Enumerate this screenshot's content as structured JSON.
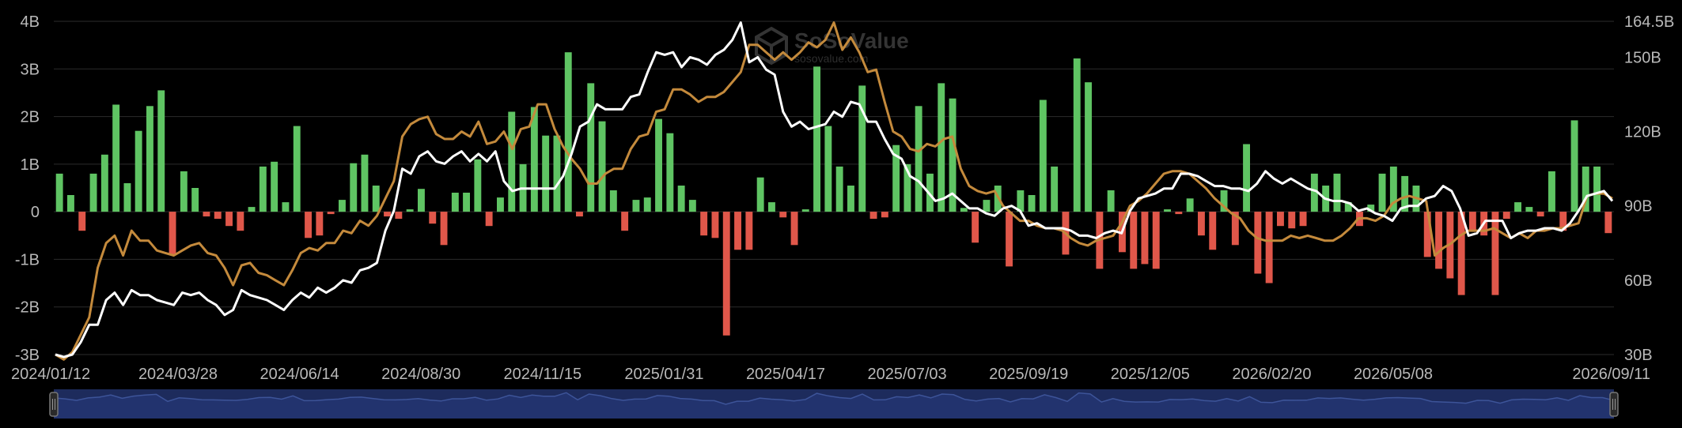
{
  "watermark": {
    "brand": "SoSoValue",
    "site": "sosovalue.com"
  },
  "colors": {
    "background": "#000000",
    "inflow_bar": "#5fc463",
    "outflow_bar": "#e0574a",
    "white_line": "#ffffff",
    "gold_line": "#c48a3c",
    "navigator_fill": "#1d2b5c",
    "navigator_line": "#3d5499"
  },
  "chart_data": {
    "type": "bar",
    "title": "",
    "grid": true,
    "left_axis": {
      "ticks": [
        "-3B",
        "-2B",
        "-1B",
        "0",
        "1B",
        "2B",
        "3B",
        "4B"
      ],
      "ylim": [
        -3,
        4
      ]
    },
    "right_axis": {
      "ticks": [
        "30B",
        "60B",
        "90B",
        "120B",
        "150B",
        "164.5B"
      ],
      "ylim": [
        30,
        164.5
      ]
    },
    "x_tick_labels": [
      "2024/01/12",
      "2024/03/28",
      "2024/06/14",
      "2024/08/30",
      "2024/11/15",
      "2025/01/31",
      "2025/04/17",
      "2025/07/03",
      "2025/09/19",
      "2025/12/05",
      "2026/02/20",
      "2026/05/08",
      "2026/09/11"
    ],
    "bar_values": [
      0.8,
      0.35,
      -0.4,
      0.8,
      1.2,
      2.25,
      0.6,
      1.7,
      2.22,
      2.55,
      -0.9,
      0.85,
      0.5,
      -0.1,
      -0.15,
      -0.3,
      -0.4,
      0.1,
      0.95,
      1.05,
      0.2,
      1.8,
      -0.55,
      -0.5,
      -0.05,
      0.25,
      1.02,
      1.2,
      0.55,
      -0.1,
      -0.15,
      0.05,
      0.48,
      -0.25,
      -0.7,
      0.4,
      0.4,
      1.1,
      -0.3,
      0.3,
      2.1,
      1.0,
      2.2,
      1.6,
      1.6,
      3.35,
      -0.1,
      2.7,
      1.9,
      0.45,
      -0.4,
      0.25,
      0.3,
      1.95,
      1.65,
      0.55,
      0.25,
      -0.5,
      -0.55,
      -2.6,
      -0.8,
      -0.8,
      0.72,
      0.2,
      -0.12,
      -0.7,
      0.05,
      3.05,
      1.8,
      0.95,
      0.55,
      2.65,
      -0.15,
      -0.12,
      1.4,
      1.0,
      2.22,
      0.8,
      2.7,
      2.38,
      0.08,
      -0.65,
      0.25,
      0.55,
      -1.15,
      0.45,
      0.35,
      2.35,
      0.95,
      -0.9,
      3.22,
      2.72,
      -1.2,
      0.45,
      -0.85,
      -1.2,
      -1.1,
      -1.2,
      0.05,
      -0.05,
      0.28,
      -0.5,
      -0.8,
      0.45,
      -0.7,
      1.42,
      -1.3,
      -1.5,
      -0.3,
      -0.35,
      -0.3,
      0.8,
      0.55,
      0.8,
      0.2,
      -0.3,
      0.15,
      0.8,
      0.95,
      0.75,
      0.55,
      -0.95,
      -1.2,
      -1.4,
      -1.75,
      -0.4,
      -0.5,
      -1.75,
      -0.15,
      0.2,
      0.1,
      -0.1,
      0.85,
      -0.4,
      1.92,
      0.95,
      0.95,
      -0.45
    ],
    "series": [
      {
        "axis": "right",
        "values": [
          30,
          29,
          30,
          35,
          42,
          42,
          52,
          55,
          50,
          56,
          54,
          54,
          52,
          51,
          50,
          55,
          54,
          55,
          52,
          50,
          46,
          48,
          56,
          54,
          53,
          52,
          50,
          48,
          52,
          55,
          53,
          57,
          55,
          57,
          60,
          59,
          64,
          65,
          67,
          80,
          88,
          105,
          103,
          110,
          112,
          108,
          107,
          110,
          112,
          108,
          111,
          108,
          112,
          100,
          96,
          97,
          97,
          97,
          97,
          97,
          102,
          111,
          122,
          124,
          131,
          129,
          129,
          129,
          134,
          135,
          144,
          152,
          151,
          152,
          146,
          150,
          149,
          147,
          151,
          153,
          157,
          164,
          148,
          150,
          145,
          143,
          128,
          122,
          124,
          121,
          122,
          123,
          128,
          126,
          132,
          131,
          124,
          124,
          117,
          111,
          109,
          102,
          100,
          96,
          92,
          93,
          95,
          92,
          89,
          89,
          87,
          86,
          89,
          90,
          88,
          82,
          83,
          81,
          81,
          81,
          80,
          78,
          78,
          77,
          79,
          80,
          79,
          88,
          93,
          94,
          95,
          97,
          97,
          103,
          103,
          102,
          100,
          98,
          98,
          97,
          97,
          96,
          99,
          104,
          101,
          99,
          101,
          99,
          97,
          96,
          93,
          92,
          92,
          91,
          88,
          89,
          87,
          86,
          84,
          89,
          90,
          90,
          93,
          94,
          98,
          96,
          89,
          78,
          79,
          84,
          84,
          84,
          77,
          79,
          80,
          80,
          81,
          81,
          80,
          83,
          88,
          94,
          95,
          96,
          92
        ]
      },
      {
        "axis": "right",
        "values": [
          30,
          28,
          31,
          38,
          45,
          65,
          75,
          78,
          70,
          80,
          76,
          76,
          72,
          71,
          70,
          72,
          74,
          75,
          71,
          70,
          65,
          58,
          66,
          67,
          63,
          62,
          60,
          58,
          64,
          71,
          73,
          72,
          75,
          75,
          80,
          79,
          84,
          82,
          86,
          93,
          100,
          118,
          123,
          125,
          126,
          119,
          117,
          117,
          120,
          118,
          124,
          115,
          116,
          120,
          113,
          121,
          122,
          131,
          131,
          121,
          114,
          109,
          105,
          99,
          99,
          103,
          105,
          105,
          113,
          118,
          119,
          128,
          129,
          137,
          137,
          135,
          132,
          134,
          134,
          136,
          140,
          144,
          155,
          155,
          152,
          149,
          152,
          149,
          152,
          156,
          154,
          157,
          164,
          153,
          158,
          152,
          144,
          145,
          132,
          120,
          118,
          113,
          112,
          115,
          114,
          117,
          118,
          105,
          98,
          96,
          95,
          96,
          90,
          87,
          84,
          84,
          82,
          81,
          81,
          80,
          77,
          75,
          74,
          76,
          77,
          78,
          83,
          90,
          92,
          95,
          99,
          103,
          104,
          104,
          103,
          100,
          97,
          93,
          90,
          87,
          85,
          80,
          77,
          76,
          76,
          76,
          78,
          77,
          78,
          77,
          76,
          76,
          78,
          81,
          85,
          85,
          84,
          86,
          91,
          93,
          94,
          93,
          92,
          70,
          73,
          75,
          78,
          80,
          80,
          80,
          81,
          79,
          77,
          79,
          77,
          80,
          80,
          81,
          81,
          82,
          83,
          94,
          95,
          95,
          93
        ]
      }
    ],
    "navigator": true
  }
}
